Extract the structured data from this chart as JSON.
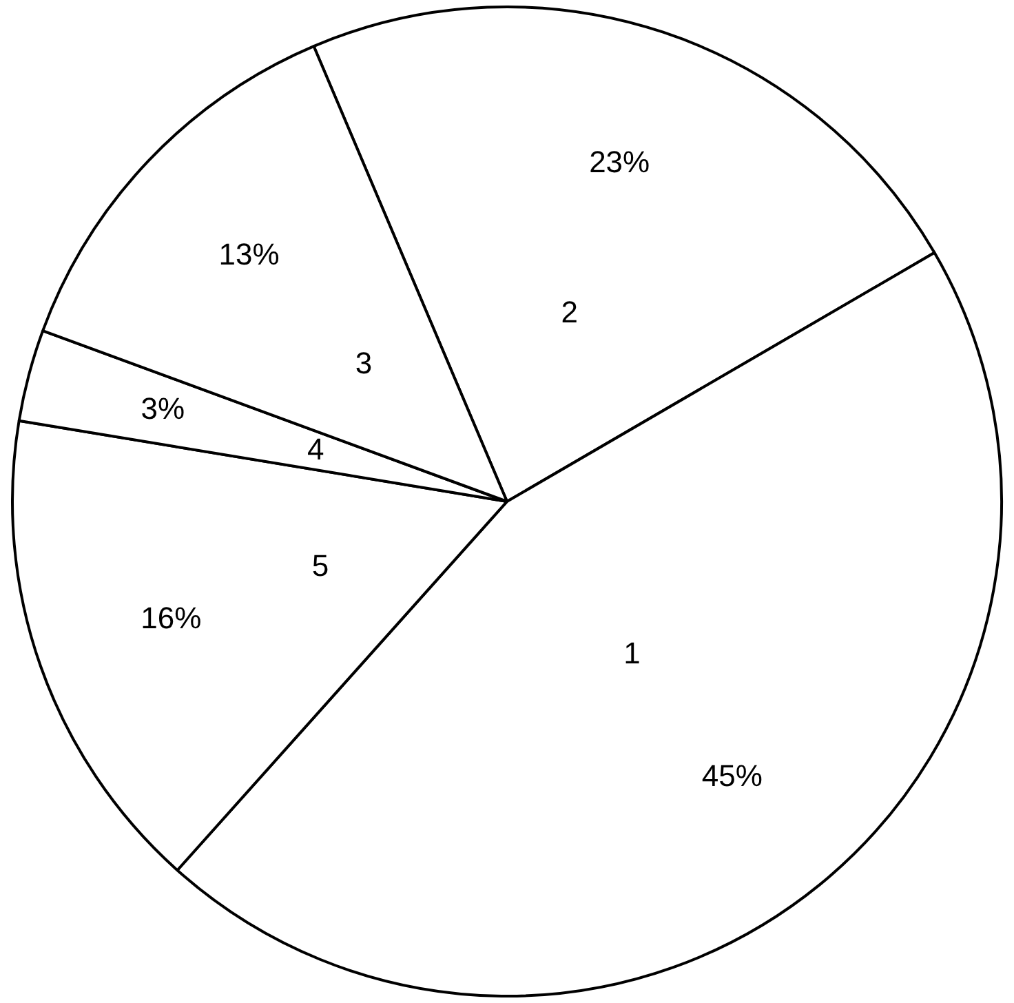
{
  "chart_data": {
    "type": "pie",
    "categories": [
      "2",
      "1",
      "5",
      "4",
      "3"
    ],
    "values": [
      23,
      45,
      16,
      3,
      13
    ],
    "value_labels": [
      "23%",
      "45%",
      "16%",
      "3%",
      "13%"
    ],
    "colors": [
      "#ffffff",
      "#ffffff",
      "#ffffff",
      "#ffffff",
      "#ffffff"
    ],
    "legend": false
  }
}
